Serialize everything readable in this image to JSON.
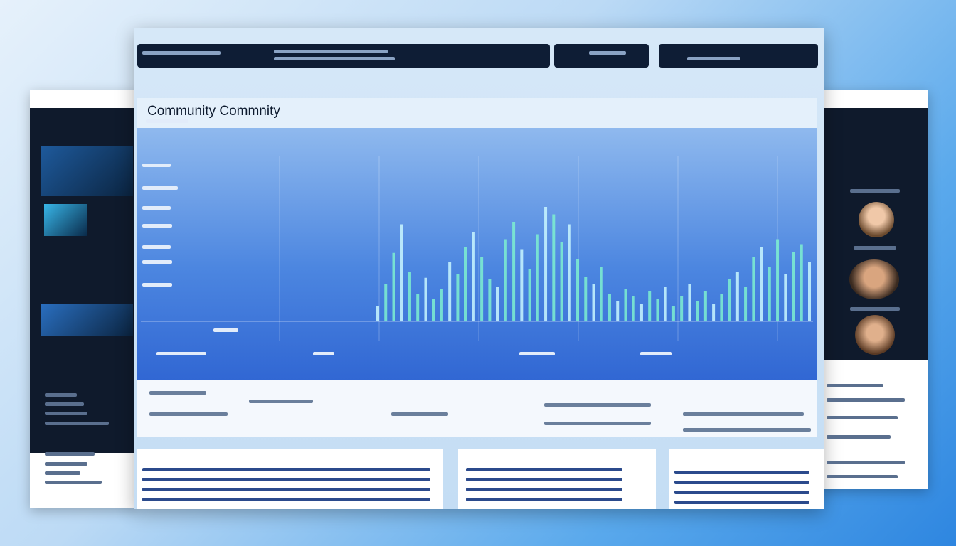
{
  "header": {
    "title": "Community Commnity"
  },
  "chart": {
    "values": [
      12,
      30,
      55,
      78,
      40,
      22,
      35,
      18,
      26,
      48,
      38,
      60,
      72,
      52,
      34,
      28,
      66,
      80,
      58,
      42,
      70,
      92,
      86,
      64,
      78,
      50,
      36,
      30,
      44,
      22,
      16,
      26,
      20,
      14,
      24,
      18,
      28,
      12,
      20,
      30,
      16,
      24,
      14,
      22,
      34,
      40,
      28,
      52,
      60,
      44,
      66,
      38,
      56,
      62,
      48
    ]
  }
}
